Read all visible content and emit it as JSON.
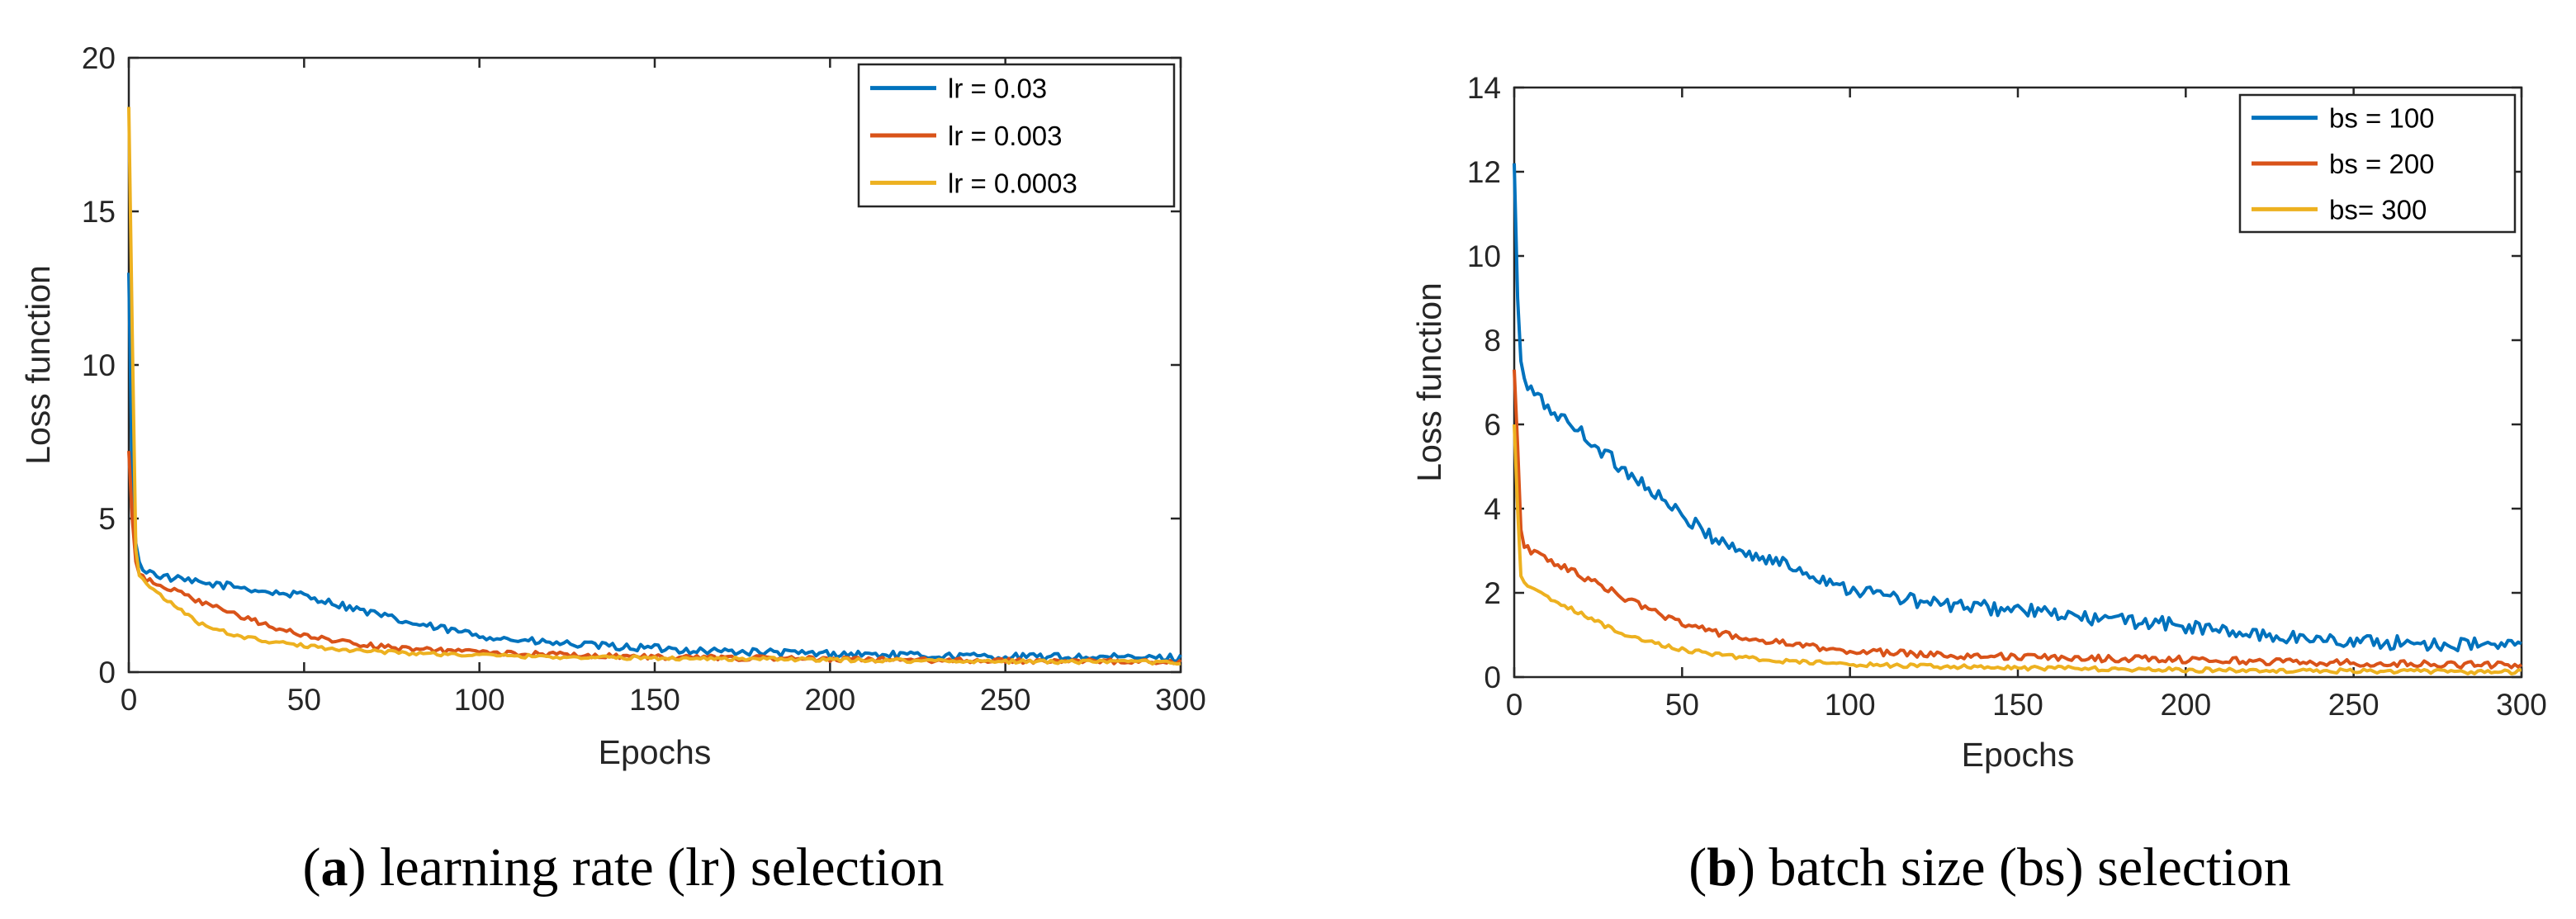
{
  "charts": [
    {
      "caption": {
        "open": "(",
        "letter": "a",
        "rest": ") learning rate (lr) selection"
      },
      "chart_data": {
        "type": "line",
        "title": "",
        "xlabel": "Epochs",
        "ylabel": "Loss function",
        "xlim": [
          0,
          300
        ],
        "ylim": [
          0,
          20
        ],
        "xticks": [
          0,
          50,
          100,
          150,
          200,
          250,
          300
        ],
        "yticks": [
          0,
          5,
          10,
          15,
          20
        ],
        "legend_position": "top-right",
        "series": [
          {
            "name": "lr = 0.03",
            "color": "#0072BD",
            "x": [
              0,
              1,
              2,
              3,
              5,
              10,
              20,
              30,
              40,
              50,
              60,
              70,
              80,
              90,
              100,
              110,
              120,
              130,
              140,
              150,
              160,
              170,
              180,
              190,
              200,
              210,
              220,
              230,
              240,
              250,
              260,
              270,
              280,
              290,
              300
            ],
            "y": [
              13.0,
              6.0,
              4.2,
              3.5,
              3.3,
              3.1,
              2.9,
              2.8,
              2.6,
              2.5,
              2.2,
              1.9,
              1.6,
              1.4,
              1.2,
              1.05,
              0.95,
              0.88,
              0.82,
              0.78,
              0.72,
              0.68,
              0.65,
              0.62,
              0.6,
              0.58,
              0.55,
              0.53,
              0.52,
              0.5,
              0.5,
              0.49,
              0.48,
              0.47,
              0.47
            ],
            "noise": 0.12
          },
          {
            "name": "lr = 0.003",
            "color": "#D95319",
            "x": [
              0,
              1,
              2,
              3,
              5,
              10,
              20,
              30,
              40,
              50,
              60,
              70,
              80,
              90,
              100,
              120,
              140,
              160,
              180,
              200,
              220,
              240,
              260,
              280,
              300
            ],
            "y": [
              7.2,
              5.0,
              3.6,
              3.2,
              3.0,
              2.8,
              2.3,
              1.9,
              1.5,
              1.2,
              1.0,
              0.85,
              0.75,
              0.7,
              0.65,
              0.58,
              0.52,
              0.48,
              0.45,
              0.42,
              0.4,
              0.38,
              0.36,
              0.35,
              0.34
            ],
            "noise": 0.08
          },
          {
            "name": "lr = 0.0003",
            "color": "#EDB120",
            "x": [
              0,
              1,
              2,
              3,
              5,
              10,
              20,
              30,
              40,
              50,
              60,
              70,
              80,
              100,
              120,
              140,
              160,
              180,
              200,
              220,
              240,
              260,
              280,
              300
            ],
            "y": [
              18.4,
              11.0,
              4.0,
              3.2,
              2.9,
              2.4,
              1.6,
              1.2,
              1.0,
              0.85,
              0.75,
              0.68,
              0.62,
              0.55,
              0.5,
              0.47,
              0.45,
              0.43,
              0.4,
              0.38,
              0.36,
              0.34,
              0.33,
              0.32
            ],
            "noise": 0.06
          }
        ]
      }
    },
    {
      "caption": {
        "open": "(",
        "letter": "b",
        "rest": ") batch size (bs) selection"
      },
      "chart_data": {
        "type": "line",
        "title": "",
        "xlabel": "Epochs",
        "ylabel": "Loss function",
        "xlim": [
          0,
          300
        ],
        "ylim": [
          0,
          14
        ],
        "xticks": [
          0,
          50,
          100,
          150,
          200,
          250,
          300
        ],
        "yticks": [
          0,
          2,
          4,
          6,
          8,
          10,
          12,
          14
        ],
        "legend_position": "top-right",
        "series": [
          {
            "name": "bs = 100",
            "color": "#0072BD",
            "x": [
              0,
              1,
              2,
              3,
              5,
              10,
              20,
              30,
              40,
              50,
              60,
              70,
              80,
              90,
              100,
              110,
              120,
              130,
              140,
              150,
              160,
              170,
              180,
              190,
              200,
              210,
              220,
              230,
              240,
              250,
              260,
              270,
              280,
              290,
              300
            ],
            "y": [
              12.2,
              9.0,
              7.5,
              7.0,
              6.8,
              6.4,
              5.8,
              5.1,
              4.5,
              3.8,
              3.3,
              2.9,
              2.7,
              2.4,
              2.1,
              1.95,
              1.8,
              1.7,
              1.65,
              1.6,
              1.5,
              1.4,
              1.35,
              1.3,
              1.2,
              1.1,
              1.0,
              0.95,
              0.9,
              0.85,
              0.82,
              0.8,
              0.78,
              0.76,
              0.75
            ],
            "noise": 0.17
          },
          {
            "name": "bs = 200",
            "color": "#D95319",
            "x": [
              0,
              1,
              2,
              3,
              5,
              10,
              20,
              30,
              40,
              50,
              60,
              70,
              80,
              90,
              100,
              120,
              140,
              160,
              180,
              200,
              220,
              240,
              260,
              280,
              300
            ],
            "y": [
              7.3,
              5.5,
              3.5,
              3.1,
              3.0,
              2.8,
              2.4,
              2.0,
              1.6,
              1.3,
              1.05,
              0.9,
              0.8,
              0.7,
              0.62,
              0.55,
              0.5,
              0.46,
              0.44,
              0.42,
              0.38,
              0.35,
              0.32,
              0.3,
              0.28
            ],
            "noise": 0.08
          },
          {
            "name": "bs= 300",
            "color": "#EDB120",
            "x": [
              0,
              1,
              2,
              3,
              5,
              10,
              20,
              30,
              40,
              50,
              60,
              70,
              80,
              100,
              120,
              140,
              160,
              180,
              200,
              220,
              240,
              260,
              280,
              300
            ],
            "y": [
              6.0,
              4.0,
              2.4,
              2.2,
              2.1,
              1.9,
              1.5,
              1.1,
              0.85,
              0.65,
              0.55,
              0.45,
              0.38,
              0.3,
              0.26,
              0.23,
              0.21,
              0.19,
              0.17,
              0.16,
              0.15,
              0.14,
              0.13,
              0.12
            ],
            "noise": 0.05
          }
        ]
      }
    }
  ]
}
